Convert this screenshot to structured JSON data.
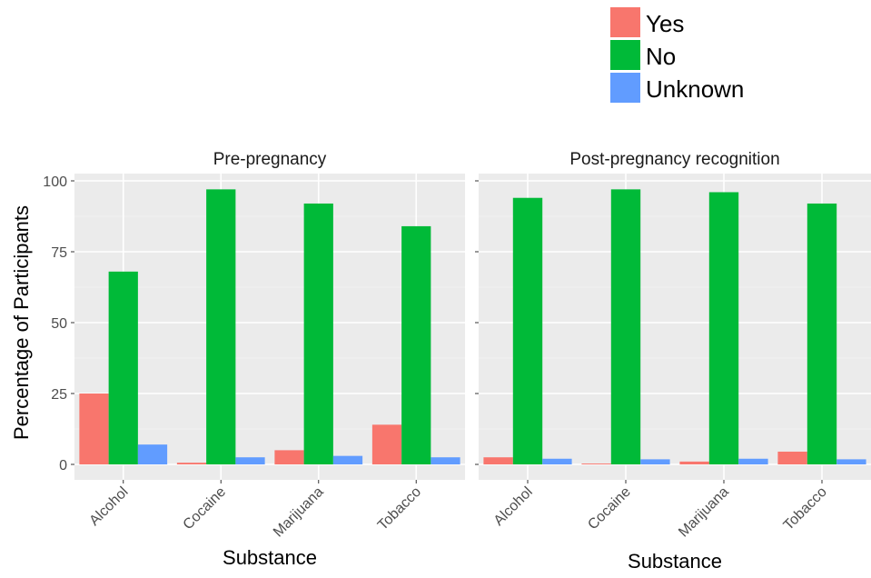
{
  "chart_data": {
    "type": "bar",
    "ylabel": "Percentage of Participants",
    "xlabel": "Substance",
    "ylim": [
      0,
      100
    ],
    "y_ticks": [
      "0",
      "25",
      "50",
      "75",
      "100"
    ],
    "categories": [
      "Alcohol",
      "Cocaine",
      "Marijuana",
      "Tobacco"
    ],
    "legend": {
      "placement": "top-right",
      "entries": [
        {
          "label": "Yes",
          "color": "#F8766D"
        },
        {
          "label": "No",
          "color": "#00BA38"
        },
        {
          "label": "Unknown",
          "color": "#619CFF"
        }
      ]
    },
    "grid": true,
    "panels": [
      {
        "title": "Pre-pregnancy",
        "series": [
          {
            "name": "Yes",
            "color": "#F8766D",
            "values": [
              25,
              0.6,
              5,
              14
            ]
          },
          {
            "name": "No",
            "color": "#00BA38",
            "values": [
              68,
              97,
              92,
              84
            ]
          },
          {
            "name": "Unknown",
            "color": "#619CFF",
            "values": [
              7,
              2.5,
              3,
              2.5
            ]
          }
        ]
      },
      {
        "title": "Post-pregnancy recognition",
        "series": [
          {
            "name": "Yes",
            "color": "#F8766D",
            "values": [
              2.5,
              0.3,
              1,
              4.5
            ]
          },
          {
            "name": "No",
            "color": "#00BA38",
            "values": [
              94,
              97,
              96,
              92
            ]
          },
          {
            "name": "Unknown",
            "color": "#619CFF",
            "values": [
              2,
              1.8,
              2,
              1.8
            ]
          }
        ]
      }
    ]
  }
}
